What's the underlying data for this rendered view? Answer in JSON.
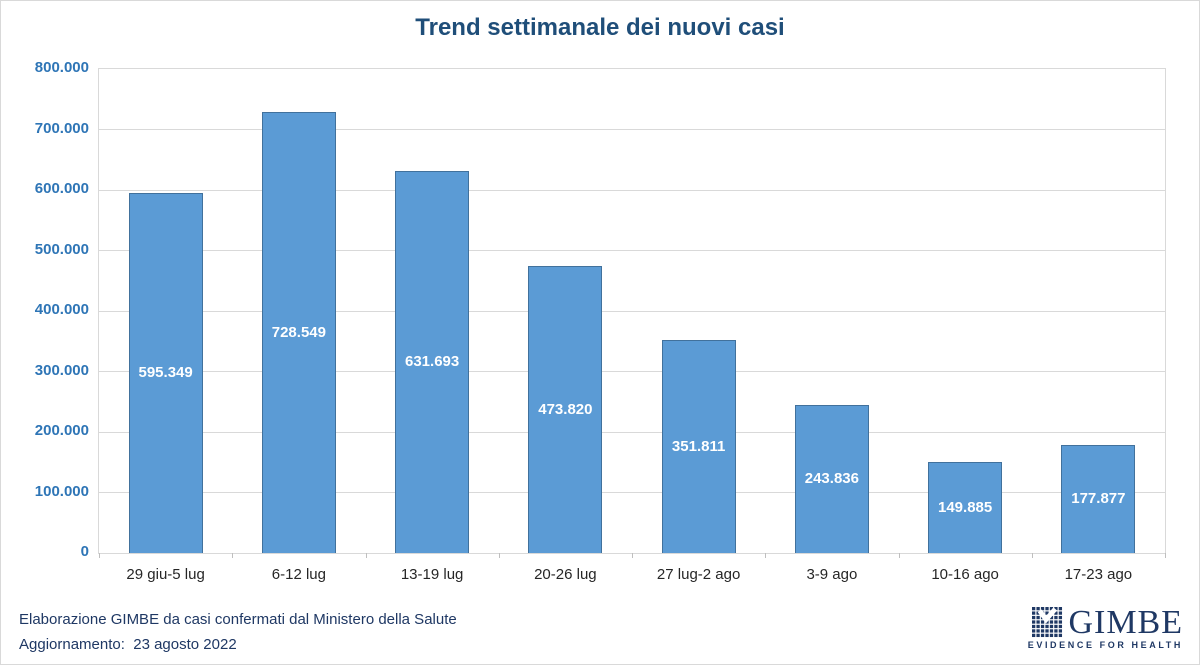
{
  "title": "Trend settimanale dei nuovi casi",
  "chart_data": {
    "type": "bar",
    "title": "Trend settimanale dei nuovi casi",
    "categories": [
      "29 giu-5 lug",
      "6-12 lug",
      "13-19 lug",
      "20-26 lug",
      "27 lug-2 ago",
      "3-9 ago",
      "10-16 ago",
      "17-23 ago"
    ],
    "values": [
      595349,
      728549,
      631693,
      473820,
      351811,
      243836,
      149885,
      177877
    ],
    "value_labels": [
      "595.349",
      "728.549",
      "631.693",
      "473.820",
      "351.811",
      "243.836",
      "149.885",
      "177.877"
    ],
    "xlabel": "",
    "ylabel": "",
    "ylim": [
      0,
      800000
    ],
    "ytick_step": 100000,
    "yticks": [
      "800.000",
      "700.000",
      "600.000",
      "500.000",
      "400.000",
      "300.000",
      "200.000",
      "100.000",
      "0"
    ],
    "grid": true,
    "legend": "none",
    "value_label_position": "inside-center"
  },
  "colors": {
    "bar_fill": "#5B9BD5",
    "bar_border": "#41719C",
    "bar_value_label": "#FFFFFF",
    "title": "#1F4E79",
    "y_tick_label": "#2E75B6",
    "x_tick_label": "#262626",
    "gridline": "#D9D9D9",
    "footer_text": "#1F3864",
    "logo": "#1F3864"
  },
  "footer": {
    "line1": "Elaborazione GIMBE da casi confermati dal Ministero della Salute",
    "line2": "Aggiornamento:  23 agosto 2022"
  },
  "logo": {
    "name": "GIMBE",
    "tagline": "EVIDENCE FOR HEALTH",
    "mark": "dot-grid-with-checkmark"
  }
}
